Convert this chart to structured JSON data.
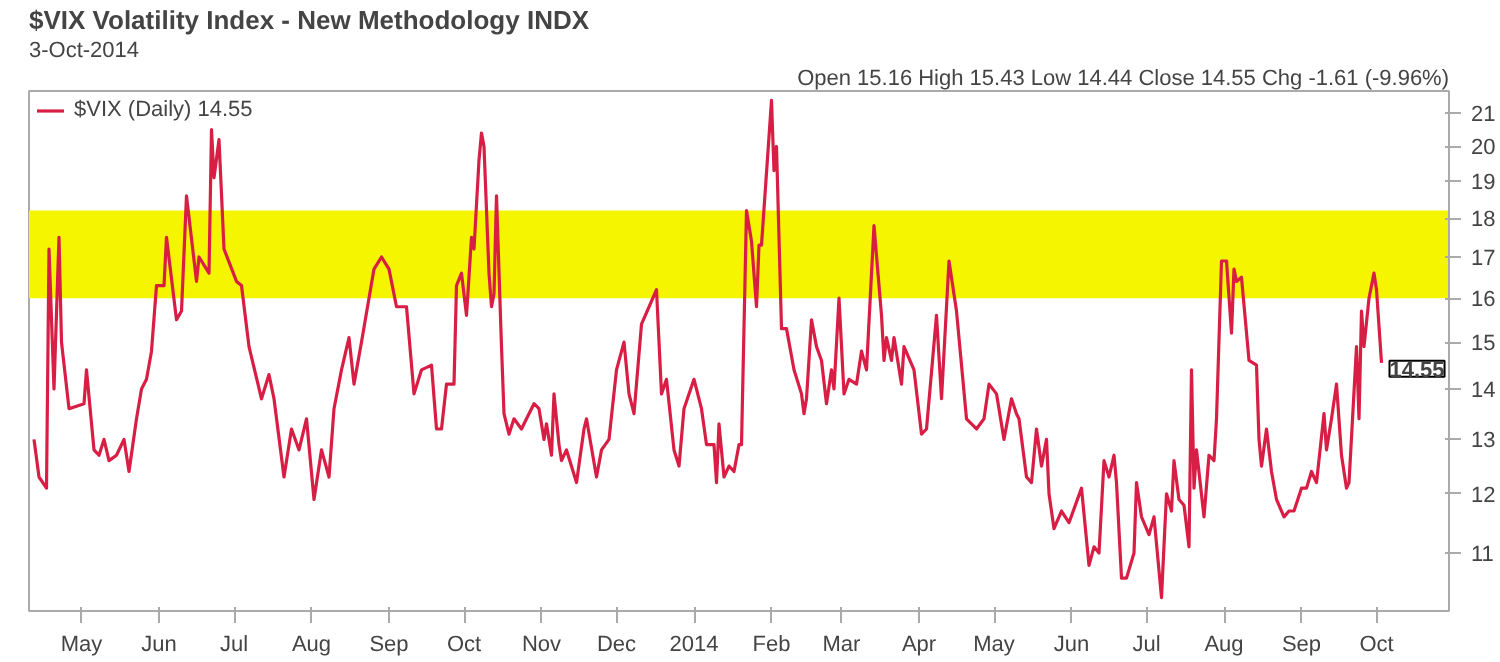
{
  "chart_data": {
    "type": "line",
    "title": "$VIX Volatility Index - New Methodology INDX",
    "subtitle": "3-Oct-2014",
    "annotations": [
      "Open 15.16 High 15.43 Low 14.44 Close 14.55 Chg -1.61 (-9.96%)",
      {
        "text": "14.55",
        "x": "2014-10-03",
        "y": 14.55
      }
    ],
    "log": "y",
    "grid": false,
    "legend": "top left",
    "xlim": [
      "2013-04-10",
      "2014-10-30"
    ],
    "xticks": [
      {
        "value": "2013-05-01",
        "label": "May"
      },
      {
        "value": "2013-06-01",
        "label": "Jun"
      },
      {
        "value": "2013-07-01",
        "label": "Jul"
      },
      {
        "value": "2013-08-01",
        "label": "Aug"
      },
      {
        "value": "2013-09-01",
        "label": "Sep"
      },
      {
        "value": "2013-10-01",
        "label": "Oct"
      },
      {
        "value": "2013-11-01",
        "label": "Nov"
      },
      {
        "value": "2013-12-01",
        "label": "Dec"
      },
      {
        "value": "2014-01-01",
        "label": "2014"
      },
      {
        "value": "2014-02-01",
        "label": "Feb"
      },
      {
        "value": "2014-03-01",
        "label": "Mar"
      },
      {
        "value": "2014-04-01",
        "label": "Apr"
      },
      {
        "value": "2014-05-01",
        "label": "May"
      },
      {
        "value": "2014-06-01",
        "label": "Jun"
      },
      {
        "value": "2014-07-01",
        "label": "Jul"
      },
      {
        "value": "2014-08-01",
        "label": "Aug"
      },
      {
        "value": "2014-09-01",
        "label": "Sep"
      },
      {
        "value": "2014-10-01",
        "label": "Oct"
      }
    ],
    "ylim": [
      10.1,
      21.7
    ],
    "yticks": [
      11,
      12,
      13,
      14,
      15,
      16,
      17,
      18,
      19,
      20,
      21
    ],
    "bands": [
      {
        "axis": "y",
        "from": 16,
        "to": 18.2,
        "color": "#f5f500"
      }
    ],
    "series": [
      {
        "name": "$VIX (Daily) 14.55",
        "color": "#d81e44",
        "x": [
          "2013-04-12",
          "2013-04-14",
          "2013-04-17",
          "2013-04-18",
          "2013-04-20",
          "2013-04-22",
          "2013-04-23",
          "2013-04-26",
          "2013-05-02",
          "2013-05-03",
          "2013-05-06",
          "2013-05-08",
          "2013-05-10",
          "2013-05-12",
          "2013-05-15",
          "2013-05-18",
          "2013-05-20",
          "2013-05-23",
          "2013-05-25",
          "2013-05-27",
          "2013-05-29",
          "2013-05-31",
          "2013-06-03",
          "2013-06-04",
          "2013-06-08",
          "2013-06-10",
          "2013-06-12",
          "2013-06-16",
          "2013-06-17",
          "2013-06-21",
          "2013-06-22",
          "2013-06-23",
          "2013-06-25",
          "2013-06-27",
          "2013-07-02",
          "2013-07-04",
          "2013-07-07",
          "2013-07-12",
          "2013-07-15",
          "2013-07-17",
          "2013-07-21",
          "2013-07-24",
          "2013-07-27",
          "2013-07-30",
          "2013-08-02",
          "2013-08-05",
          "2013-08-08",
          "2013-08-10",
          "2013-08-13",
          "2013-08-16",
          "2013-08-18",
          "2013-08-21",
          "2013-08-26",
          "2013-08-29",
          "2013-09-01",
          "2013-09-04",
          "2013-09-08",
          "2013-09-11",
          "2013-09-14",
          "2013-09-18",
          "2013-09-20",
          "2013-09-22",
          "2013-09-24",
          "2013-09-27",
          "2013-09-28",
          "2013-09-30",
          "2013-10-02",
          "2013-10-04",
          "2013-10-05",
          "2013-10-07",
          "2013-10-08",
          "2013-10-09",
          "2013-10-11",
          "2013-10-12",
          "2013-10-13",
          "2013-10-14",
          "2013-10-16",
          "2013-10-17",
          "2013-10-19",
          "2013-10-21",
          "2013-10-24",
          "2013-10-26",
          "2013-10-29",
          "2013-10-31",
          "2013-11-02",
          "2013-11-03",
          "2013-11-05",
          "2013-11-06",
          "2013-11-08",
          "2013-11-09",
          "2013-11-11",
          "2013-11-15",
          "2013-11-18",
          "2013-11-19",
          "2013-11-23",
          "2013-11-25",
          "2013-11-28",
          "2013-12-01",
          "2013-12-04",
          "2013-12-06",
          "2013-12-08",
          "2013-12-11",
          "2013-12-17",
          "2013-12-19",
          "2013-12-21",
          "2013-12-24",
          "2013-12-26",
          "2013-12-28",
          "2014-01-01",
          "2014-01-04",
          "2014-01-06",
          "2014-01-09",
          "2014-01-10",
          "2014-01-11",
          "2014-01-13",
          "2014-01-15",
          "2014-01-17",
          "2014-01-19",
          "2014-01-20",
          "2014-01-22",
          "2014-01-24",
          "2014-01-26",
          "2014-01-27",
          "2014-01-28",
          "2014-02-01",
          "2014-02-02",
          "2014-02-03",
          "2014-02-05",
          "2014-02-07",
          "2014-02-10",
          "2014-02-13",
          "2014-02-14",
          "2014-02-15",
          "2014-02-17",
          "2014-02-19",
          "2014-02-21",
          "2014-02-23",
          "2014-02-25",
          "2014-02-26",
          "2014-02-28",
          "2014-03-02",
          "2014-03-04",
          "2014-03-07",
          "2014-03-09",
          "2014-03-11",
          "2014-03-14",
          "2014-03-17",
          "2014-03-18",
          "2014-03-19",
          "2014-03-21",
          "2014-03-22",
          "2014-03-25",
          "2014-03-26",
          "2014-03-30",
          "2014-04-02",
          "2014-04-04",
          "2014-04-08",
          "2014-04-10",
          "2014-04-13",
          "2014-04-16",
          "2014-04-20",
          "2014-04-24",
          "2014-04-27",
          "2014-04-29",
          "2014-05-02",
          "2014-05-05",
          "2014-05-08",
          "2014-05-10",
          "2014-05-11",
          "2014-05-14",
          "2014-05-16",
          "2014-05-18",
          "2014-05-20",
          "2014-05-22",
          "2014-05-23",
          "2014-05-25",
          "2014-05-28",
          "2014-05-31",
          "2014-06-05",
          "2014-06-08",
          "2014-06-10",
          "2014-06-12",
          "2014-06-14",
          "2014-06-16",
          "2014-06-18",
          "2014-06-19",
          "2014-06-21",
          "2014-06-23",
          "2014-06-26",
          "2014-06-27",
          "2014-06-29",
          "2014-07-02",
          "2014-07-04",
          "2014-07-07",
          "2014-07-09",
          "2014-07-11",
          "2014-07-12",
          "2014-07-14",
          "2014-07-16",
          "2014-07-18",
          "2014-07-19",
          "2014-07-20",
          "2014-07-21",
          "2014-07-24",
          "2014-07-26",
          "2014-07-28",
          "2014-07-29",
          "2014-07-31",
          "2014-08-02",
          "2014-08-04",
          "2014-08-05",
          "2014-08-06",
          "2014-08-08",
          "2014-08-11",
          "2014-08-14",
          "2014-08-15",
          "2014-08-16",
          "2014-08-18",
          "2014-08-20",
          "2014-08-22",
          "2014-08-25",
          "2014-08-27",
          "2014-08-29",
          "2014-09-01",
          "2014-09-03",
          "2014-09-05",
          "2014-09-07",
          "2014-09-10",
          "2014-09-11",
          "2014-09-13",
          "2014-09-15",
          "2014-09-17",
          "2014-09-19",
          "2014-09-20",
          "2014-09-23",
          "2014-09-24",
          "2014-09-25",
          "2014-09-26",
          "2014-09-28",
          "2014-09-30",
          "2014-10-01",
          "2014-10-03"
        ],
        "values": [
          13.0,
          12.3,
          12.1,
          17.2,
          14.0,
          17.5,
          15.0,
          13.6,
          13.7,
          14.4,
          12.8,
          12.7,
          13.0,
          12.6,
          12.7,
          13.0,
          12.4,
          13.4,
          14.0,
          14.2,
          14.8,
          16.3,
          16.3,
          17.5,
          15.5,
          15.7,
          18.6,
          16.4,
          17.0,
          16.6,
          20.5,
          19.1,
          20.2,
          17.2,
          16.4,
          16.3,
          14.9,
          13.8,
          14.3,
          13.8,
          12.3,
          13.2,
          12.8,
          13.4,
          11.9,
          12.8,
          12.3,
          13.6,
          14.4,
          15.1,
          14.1,
          15.0,
          16.7,
          17.0,
          16.7,
          15.8,
          15.8,
          13.9,
          14.4,
          14.5,
          13.2,
          13.2,
          14.1,
          14.1,
          16.3,
          16.6,
          15.6,
          17.5,
          17.2,
          19.6,
          20.4,
          20.0,
          16.6,
          15.8,
          16.1,
          18.6,
          14.9,
          13.5,
          13.1,
          13.4,
          13.2,
          13.4,
          13.7,
          13.6,
          13.0,
          13.3,
          12.7,
          13.9,
          12.9,
          12.6,
          12.8,
          12.2,
          13.2,
          13.4,
          12.3,
          12.8,
          13.0,
          14.4,
          15.0,
          13.9,
          13.5,
          15.4,
          16.2,
          13.9,
          14.2,
          12.8,
          12.5,
          13.6,
          14.2,
          13.6,
          12.9,
          12.9,
          12.2,
          13.3,
          12.3,
          12.5,
          12.4,
          12.9,
          12.9,
          18.2,
          17.4,
          15.8,
          17.3,
          17.3,
          21.4,
          19.3,
          20.0,
          15.3,
          15.3,
          14.4,
          13.9,
          13.5,
          13.8,
          15.5,
          14.9,
          14.6,
          13.7,
          14.4,
          14.0,
          16.0,
          13.9,
          14.2,
          14.1,
          14.8,
          14.4,
          17.8,
          15.6,
          14.6,
          15.1,
          14.6,
          15.1,
          14.1,
          14.9,
          14.4,
          13.1,
          13.2,
          15.6,
          13.8,
          16.9,
          15.7,
          13.4,
          13.2,
          13.4,
          14.1,
          13.9,
          13.0,
          13.8,
          13.5,
          13.4,
          12.3,
          12.2,
          13.2,
          12.5,
          13.0,
          12.0,
          11.4,
          11.7,
          11.5,
          12.1,
          10.8,
          11.1,
          11.0,
          12.6,
          12.3,
          12.7,
          12.2,
          10.6,
          10.6,
          11.0,
          12.2,
          11.6,
          11.3,
          11.6,
          10.3,
          12.0,
          11.7,
          12.6,
          11.9,
          11.8,
          11.1,
          14.4,
          12.1,
          12.8,
          11.6,
          12.7,
          12.6,
          13.4,
          16.9,
          16.9,
          15.2,
          16.7,
          16.4,
          16.5,
          14.6,
          14.5,
          13.0,
          12.5,
          13.2,
          12.4,
          11.9,
          11.6,
          11.7,
          11.7,
          12.1,
          12.1,
          12.4,
          12.2,
          13.5,
          12.8,
          13.4,
          14.1,
          12.7,
          12.1,
          12.2,
          14.9,
          13.4,
          15.7,
          14.9,
          16.0,
          16.6,
          16.2,
          14.55
        ]
      }
    ]
  }
}
